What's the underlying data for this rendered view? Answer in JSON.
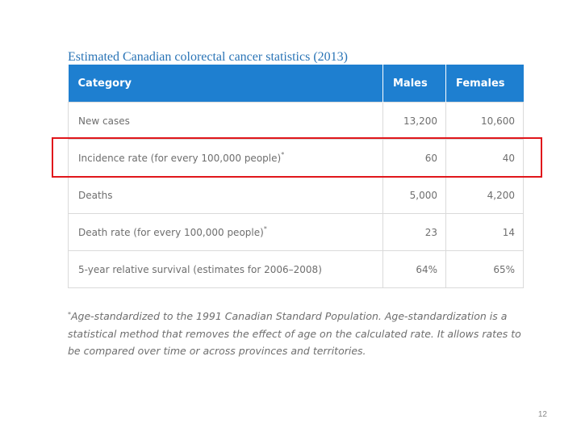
{
  "slide": {
    "title": "Estimated Canadian colorectal cancer statistics (2013)",
    "page_number": "12",
    "highlight_color": "#e0161b",
    "header_color": "#1e7fd0"
  },
  "table": {
    "headers": [
      "Category",
      "Males",
      "Females"
    ],
    "rows": [
      {
        "category": "New cases",
        "mark": "",
        "males": "13,200",
        "females": "10,600"
      },
      {
        "category": "Incidence rate (for every 100,000 people)",
        "mark": "*",
        "males": "60",
        "females": "40"
      },
      {
        "category": "Deaths",
        "mark": "",
        "males": "5,000",
        "females": "4,200"
      },
      {
        "category": "Death rate (for every 100,000 people)",
        "mark": "*",
        "males": "23",
        "females": "14"
      },
      {
        "category": "5-year relative survival (estimates for 2006–2008)",
        "mark": "",
        "males": "64%",
        "females": "65%"
      }
    ]
  },
  "footnote": {
    "mark": "*",
    "text": "Age-standardized to the 1991 Canadian Standard Population. Age-standardization is a statistical method that removes the effect of age on the calculated rate. It allows rates to be compared over time or across provinces and territories."
  }
}
